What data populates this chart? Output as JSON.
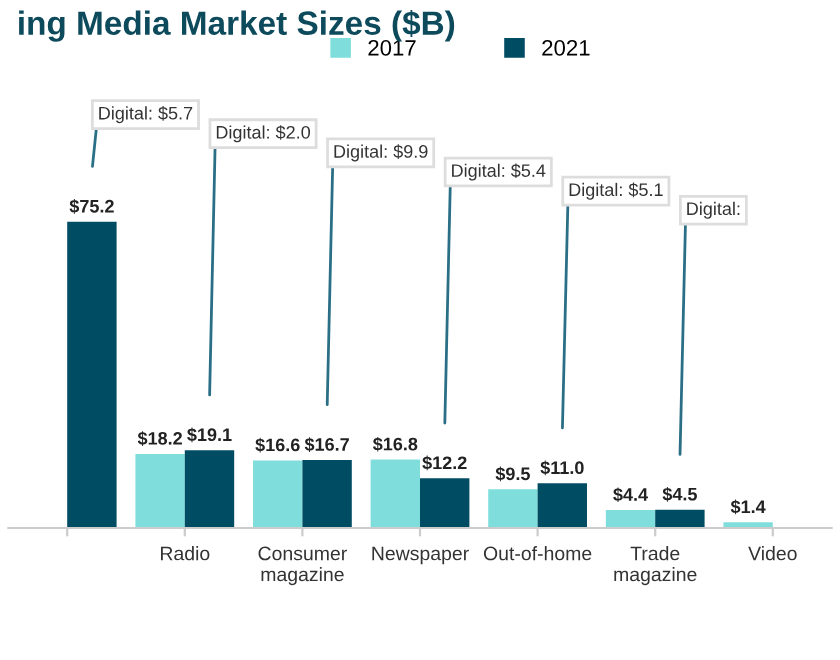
{
  "chart_data": {
    "type": "bar",
    "title": "ing Media Market Sizes ($B)",
    "categories": [
      null,
      "Radio",
      "Consumer\nmagazine",
      "Newspaper",
      "Out-of-home",
      "Trade\nmagazine",
      "Video"
    ],
    "series": [
      {
        "name": "2017",
        "color": "#7fdedc",
        "values": [
          null,
          18.2,
          16.6,
          16.8,
          9.5,
          4.4,
          1.4
        ],
        "value_labels": [
          null,
          "$18.2",
          "$16.6",
          "$16.8",
          "$9.5",
          "$4.4",
          "$1.4"
        ]
      },
      {
        "name": "2021",
        "color": "#004c63",
        "values": [
          75.2,
          19.1,
          16.7,
          12.2,
          11.0,
          4.5,
          null
        ],
        "value_labels": [
          "$75.2",
          "$19.1",
          "$16.7",
          "$12.2",
          "$11.0",
          "$4.5",
          null
        ]
      }
    ],
    "annotations": [
      "Digital: $5.7",
      "Digital: $2.0",
      "Digital: $9.9",
      "Digital: $5.4",
      "Digital: $5.1",
      "Digital:"
    ],
    "legend": "top",
    "grid": false
  }
}
